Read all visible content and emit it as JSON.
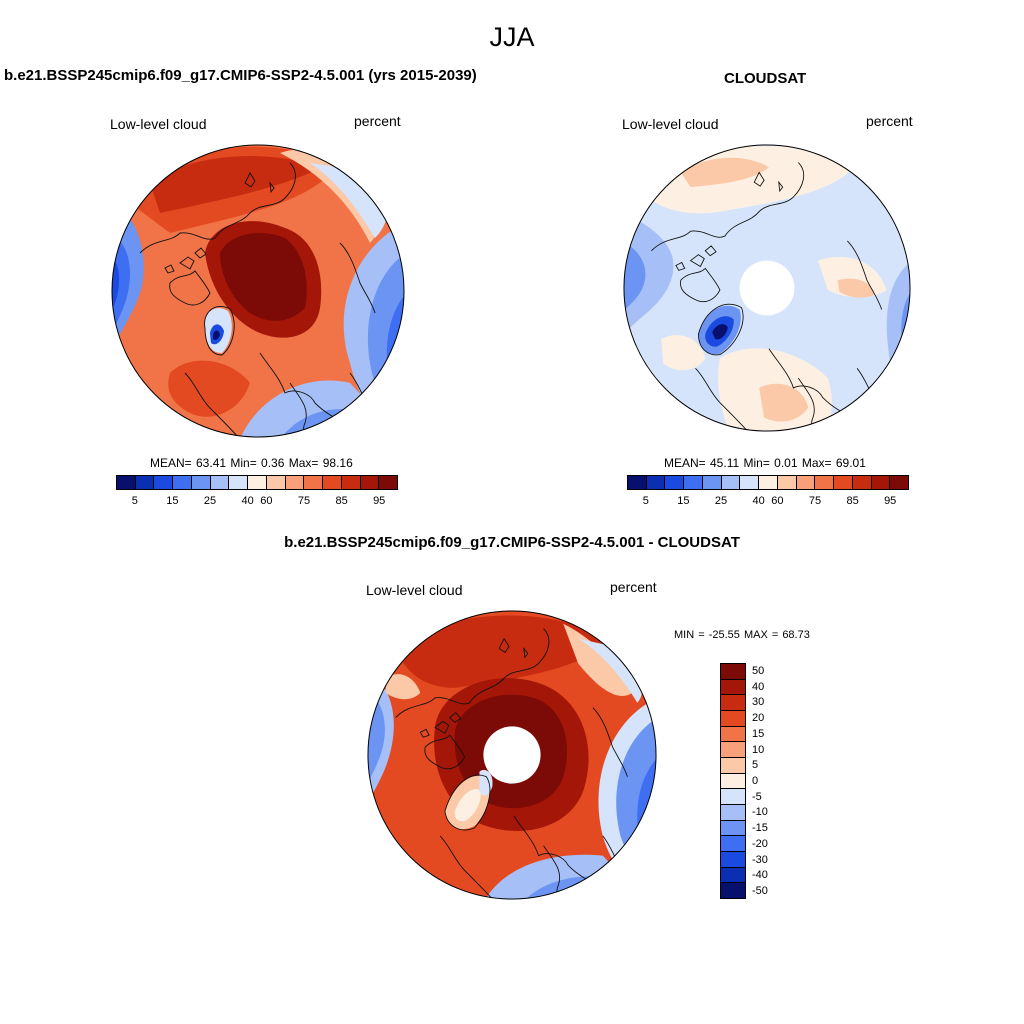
{
  "title": "JJA",
  "colors": {
    "abs": [
      "#08106e",
      "#0b2fb2",
      "#1a4ae0",
      "#3e6ef2",
      "#6c94f2",
      "#a6c0f7",
      "#d6e4fb",
      "#fdf0e2",
      "#fbc8a8",
      "#f7a07a",
      "#f07448",
      "#e44a22",
      "#c82c10",
      "#a31608",
      "#7c0a06"
    ],
    "diff": [
      "#7c0a06",
      "#a31608",
      "#c82c10",
      "#e44a22",
      "#f07448",
      "#f7a07a",
      "#fbc8a8",
      "#fdf0e2",
      "#d6e4fb",
      "#a6c0f7",
      "#6c94f2",
      "#3e6ef2",
      "#1a4ae0",
      "#0b2fb2",
      "#08106e"
    ]
  },
  "panel_a": {
    "title": "b.e21.BSSP245cmip6.f09_g17.CMIP6-SSP2-4.5.001 (yrs 2015-2039)",
    "variable": "Low-level cloud",
    "units": "percent",
    "stats": "MEAN=  63.41  Min=   0.36  Max=  98.16",
    "ticks": [
      "5",
      "15",
      "25",
      "40",
      "60",
      "75",
      "85",
      "95"
    ]
  },
  "panel_b": {
    "title": "CLOUDSAT",
    "variable": "Low-level cloud",
    "units": "percent",
    "stats": "MEAN=  45.11  Min=   0.01  Max=  69.01",
    "ticks": [
      "5",
      "15",
      "25",
      "40",
      "60",
      "75",
      "85",
      "95"
    ]
  },
  "panel_c": {
    "title": "b.e21.BSSP245cmip6.f09_g17.CMIP6-SSP2-4.5.001 - CLOUDSAT",
    "variable": "Low-level cloud",
    "units": "percent",
    "stats": "MIN = -25.55 MAX =  68.73",
    "ticks": [
      "50",
      "40",
      "30",
      "20",
      "15",
      "10",
      "5",
      "0",
      "-5",
      "-10",
      "-15",
      "-20",
      "-30",
      "-40",
      "-50"
    ]
  }
}
